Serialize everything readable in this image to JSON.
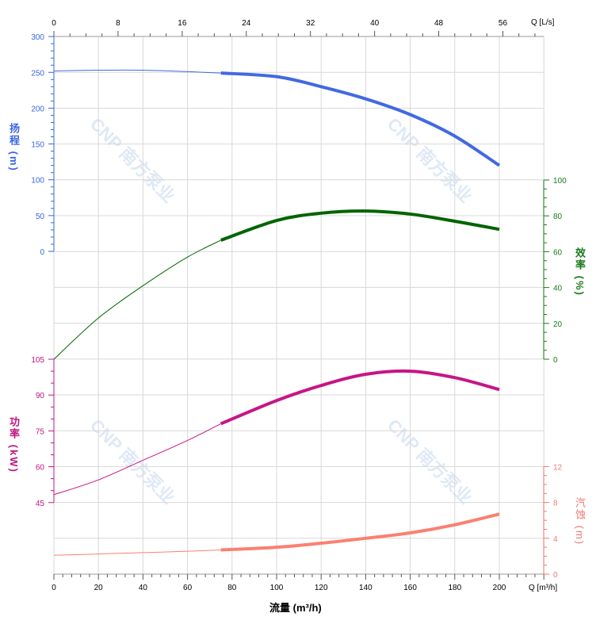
{
  "chart_data": {
    "type": "line",
    "x_axis": {
      "label": "流量 (m³/h)",
      "unit_label": "Q [m³/h]",
      "range": [
        0,
        220
      ],
      "ticks": [
        0,
        20,
        40,
        60,
        80,
        100,
        120,
        140,
        160,
        180,
        200
      ]
    },
    "top_axis": {
      "unit_label": "Q [L/s]",
      "ticks": [
        0,
        8,
        16,
        24,
        32,
        40,
        48,
        56
      ]
    },
    "grid": true,
    "watermark": "CNP 南方泵业",
    "series": [
      {
        "name": "扬程 (m)",
        "axis": "left-top",
        "color": "#4169e1",
        "label_color": "#3a66e0",
        "ticks": [
          0,
          50,
          100,
          150,
          200,
          250,
          300
        ],
        "range": [
          0,
          300
        ],
        "x": [
          0,
          20,
          40,
          60,
          75,
          100,
          120,
          140,
          160,
          180,
          200
        ],
        "y": [
          252,
          253,
          253,
          251,
          249,
          244,
          230,
          213,
          191,
          161,
          120
        ]
      },
      {
        "name": "效率 (%)",
        "axis": "right",
        "color": "#006400",
        "label_color": "#1a7a1a",
        "ticks": [
          0,
          20,
          40,
          60,
          80,
          100
        ],
        "range": [
          0,
          100
        ],
        "x": [
          0,
          20,
          40,
          60,
          75,
          100,
          120,
          140,
          160,
          180,
          200
        ],
        "y": [
          0,
          23,
          41,
          57,
          66.4,
          77.4,
          81.5,
          82.7,
          81,
          77,
          72.5
        ]
      },
      {
        "name": "功率 (kW)",
        "axis": "left-bottom",
        "color": "#c71585",
        "label_color": "#c0157f",
        "ticks": [
          45,
          60,
          75,
          90,
          105
        ],
        "range": [
          45,
          105
        ],
        "x": [
          0,
          20,
          40,
          60,
          75,
          100,
          120,
          140,
          160,
          180,
          200
        ],
        "y": [
          48.3,
          54.5,
          62.7,
          71,
          78,
          87.7,
          94,
          98.7,
          100,
          97.3,
          92.3
        ]
      },
      {
        "name": "汽蚀 (m)",
        "axis": "right-bottom",
        "color": "#fa8072",
        "label_color": "#f07870",
        "ticks": [
          0,
          4,
          8,
          12
        ],
        "range": [
          0,
          12
        ],
        "x": [
          0,
          20,
          40,
          60,
          75,
          100,
          120,
          140,
          160,
          180,
          200
        ],
        "y": [
          2.1,
          2.25,
          2.4,
          2.55,
          2.7,
          3.0,
          3.45,
          4.0,
          4.6,
          5.5,
          6.7
        ]
      }
    ],
    "operating_range": [
      75,
      200
    ]
  }
}
